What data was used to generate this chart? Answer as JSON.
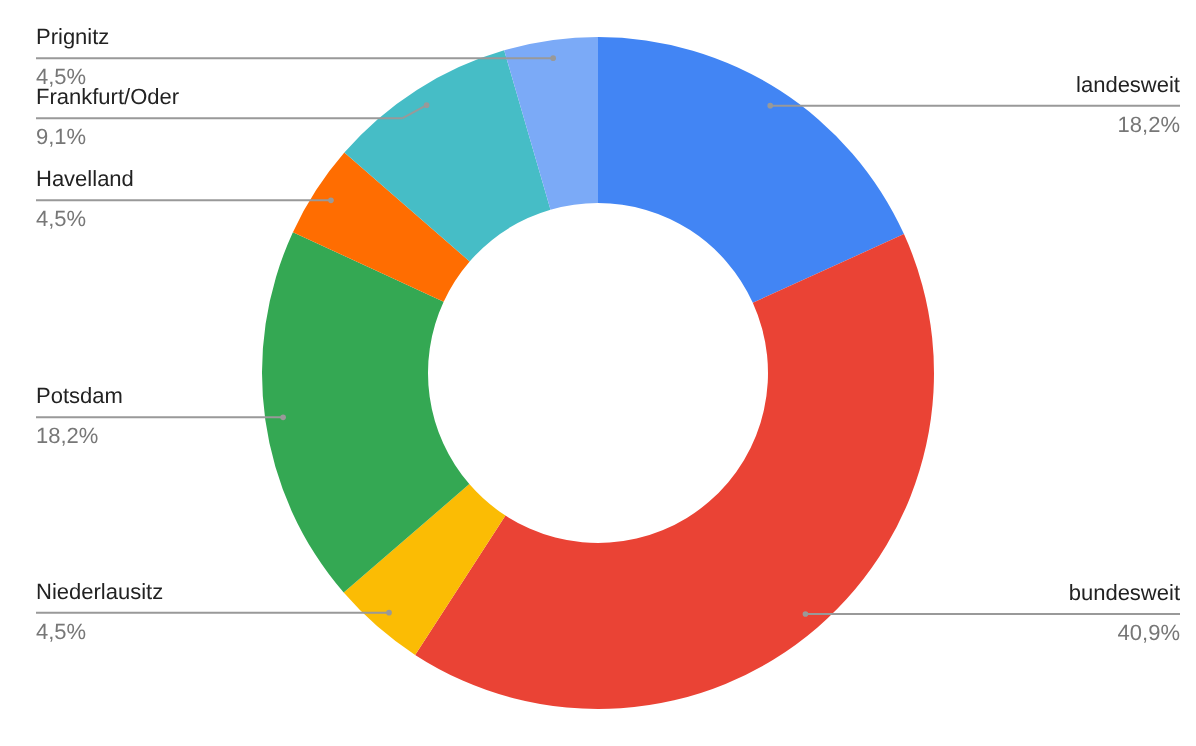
{
  "chart_data": {
    "type": "donut",
    "categories": [
      "landesweit",
      "bundesweit",
      "Niederlausitz",
      "Potsdam",
      "Havelland",
      "Frankfurt/Oder",
      "Prignitz"
    ],
    "values": [
      18.2,
      40.9,
      4.5,
      18.2,
      4.5,
      9.1,
      4.5
    ],
    "value_labels": [
      "18,2%",
      "40,9%",
      "4,5%",
      "18,2%",
      "4,5%",
      "9,1%",
      "4,5%"
    ],
    "colors": [
      "#4285f4",
      "#ea4335",
      "#fbbc04",
      "#34a853",
      "#ff6d01",
      "#46bdc6",
      "#7baaf7"
    ]
  }
}
